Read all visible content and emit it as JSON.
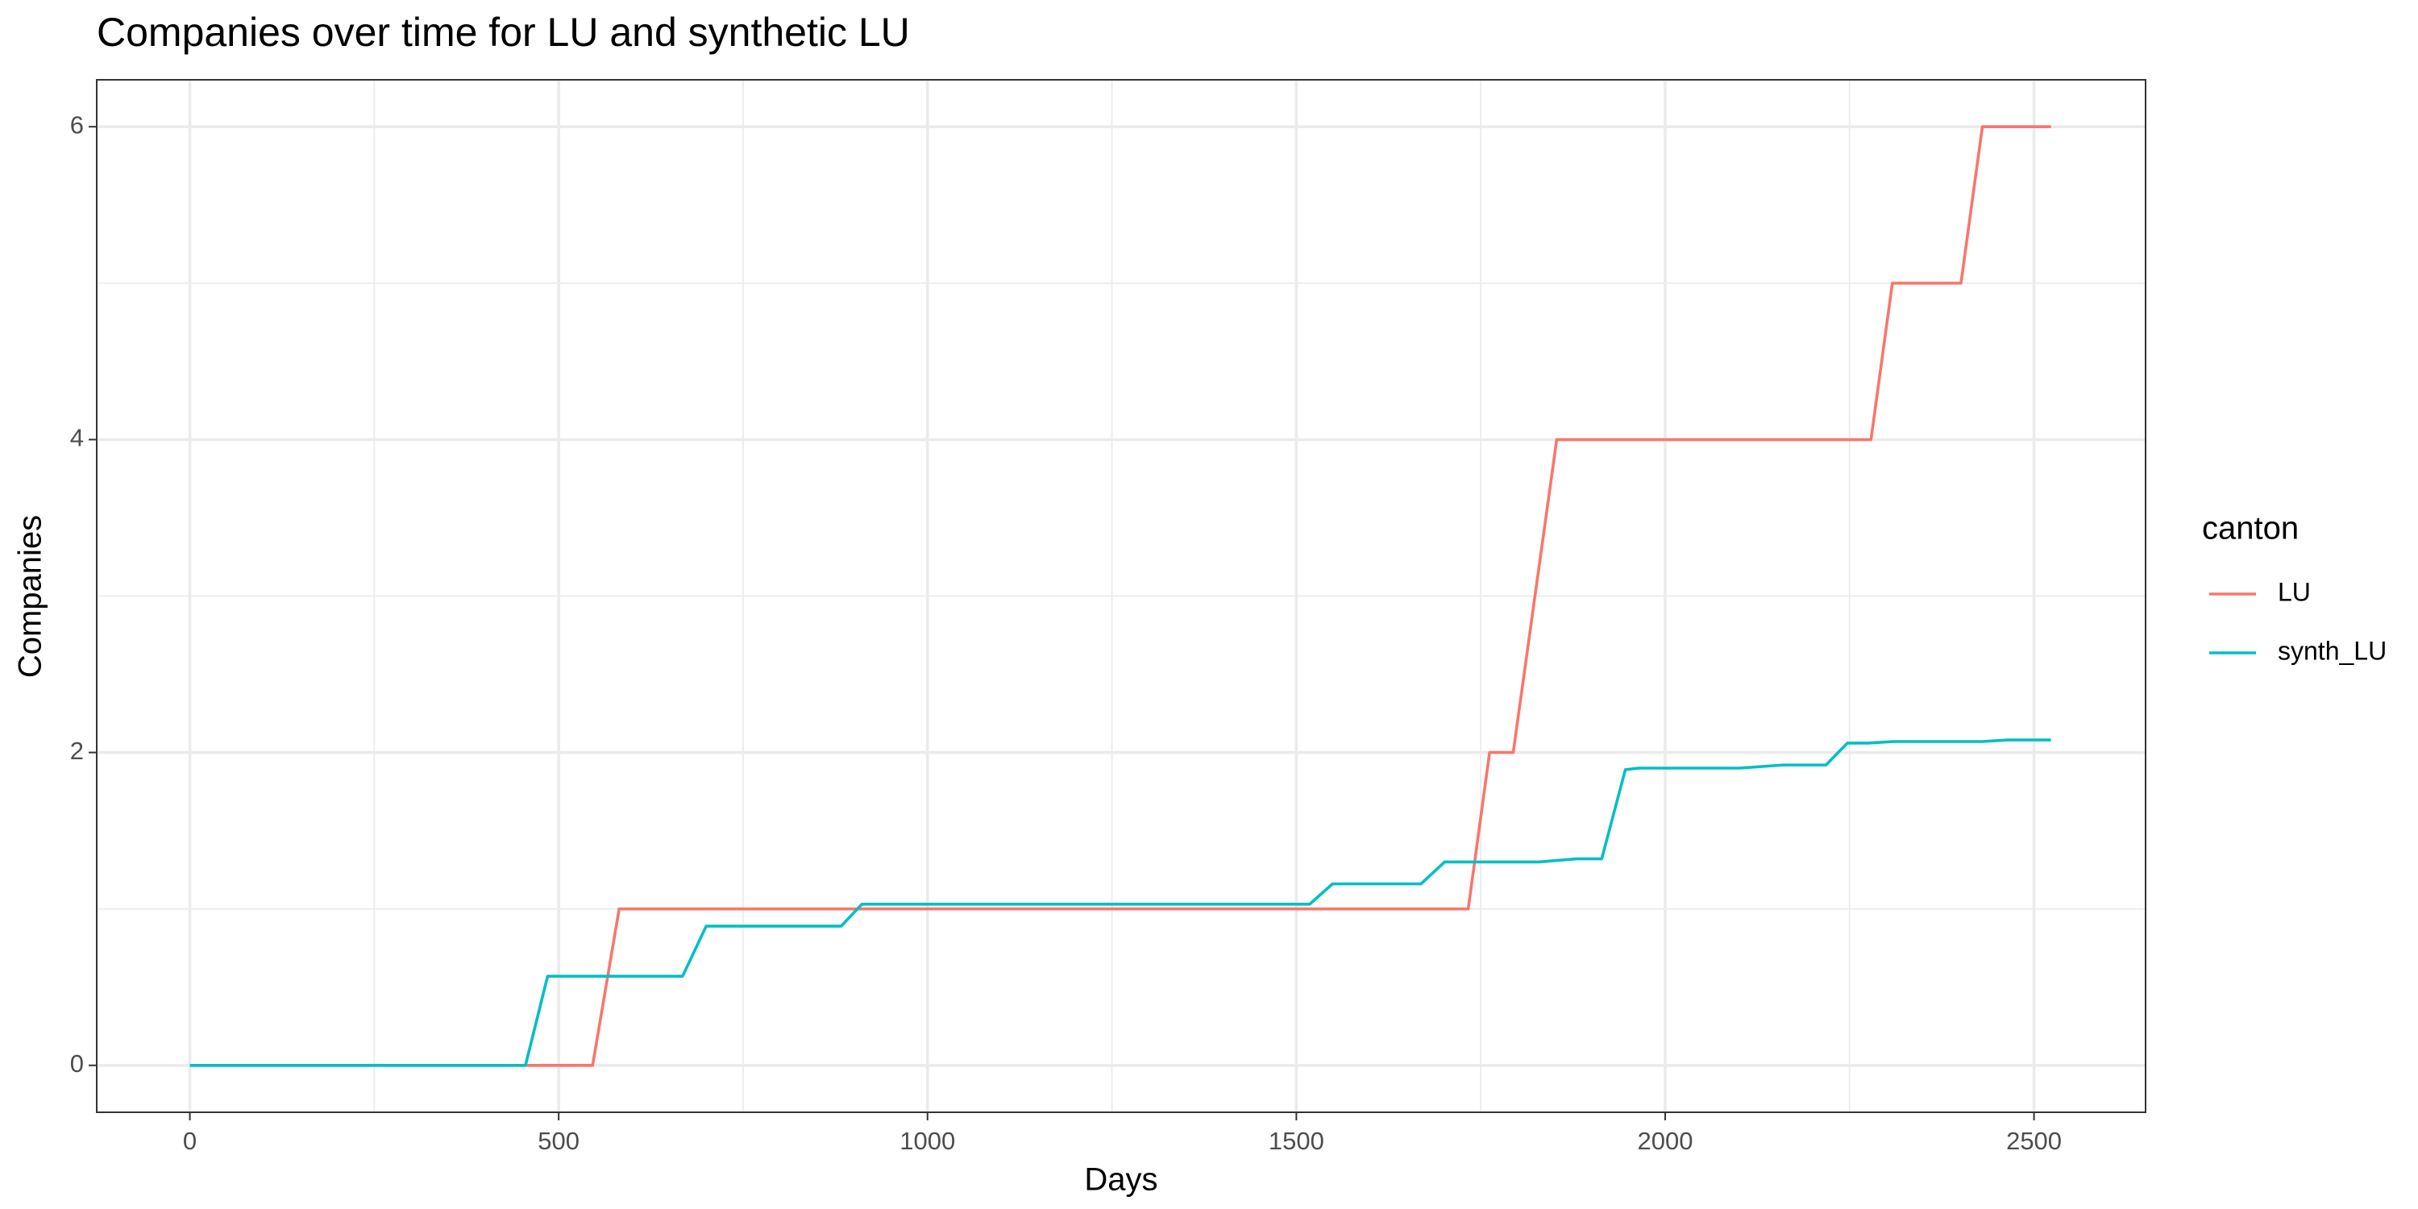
{
  "chart_data": {
    "type": "line",
    "title": "Companies over time for LU and synthetic LU",
    "x_label": "Days",
    "y_label": "Companies",
    "legend_title": "canton",
    "legend_position": "right",
    "xlim": [
      -126.25,
      2651.25
    ],
    "ylim": [
      -0.3,
      6.3
    ],
    "xticks": [
      0,
      500,
      1000,
      1500,
      2000,
      2500
    ],
    "yticks": [
      0,
      2,
      4,
      6
    ],
    "grid": true,
    "minor_grid": true,
    "series": [
      {
        "name": "LU",
        "color": "#f8766d",
        "x": [
          0,
          546,
          582,
          1733,
          1762,
          1794,
          1853,
          2279,
          2308,
          2401,
          2430,
          2523
        ],
        "values": [
          0,
          0,
          1,
          1,
          2,
          2,
          4,
          4,
          5,
          5,
          6,
          6
        ]
      },
      {
        "name": "synth_LU",
        "color": "#00bfc4",
        "x": [
          0,
          455,
          485,
          668,
          700,
          883,
          911,
          1518,
          1549,
          1669,
          1701,
          1828,
          1880,
          1914,
          1946,
          1965,
          2100,
          2160,
          2218,
          2247,
          2275,
          2310,
          2430,
          2465,
          2523
        ],
        "values": [
          0,
          0,
          0.57,
          0.57,
          0.89,
          0.89,
          1.03,
          1.03,
          1.16,
          1.16,
          1.3,
          1.3,
          1.32,
          1.32,
          1.89,
          1.9,
          1.9,
          1.92,
          1.92,
          2.06,
          2.06,
          2.07,
          2.07,
          2.08,
          2.08
        ]
      }
    ]
  }
}
